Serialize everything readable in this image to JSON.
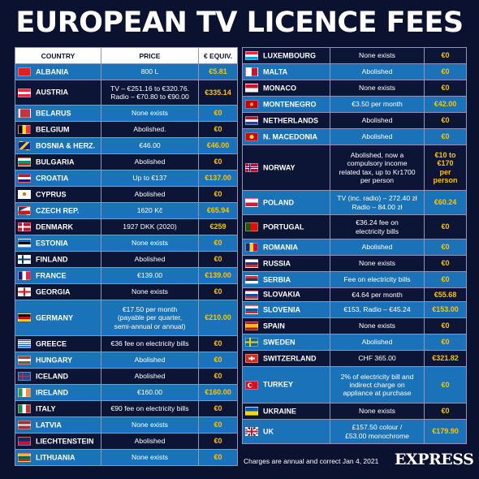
{
  "title": "EUROPEAN TV LICENCE FEES",
  "headers": {
    "country": "COUNTRY",
    "price": "PRICE",
    "equiv": "€ EQUIV."
  },
  "colors": {
    "light_row": "#1a73b8",
    "dark_row": "#0c1536",
    "highlight": "#f7c500",
    "background": "#0b1230"
  },
  "left_rows": [
    {
      "country": "ALBANIA",
      "price": "800 L",
      "equiv": "€5.81",
      "flag": "albania-flag"
    },
    {
      "country": "AUSTRIA",
      "price": "TV – €251.16 to €320.76.\nRadio – €70.80 to €90.00",
      "equiv": "€335.14",
      "flag": "austria-flag"
    },
    {
      "country": "BELARUS",
      "price": "None exists",
      "equiv": "€0",
      "flag": "belarus-flag"
    },
    {
      "country": "BELGIUM",
      "price": "Abolished.",
      "equiv": "€0",
      "flag": "belgium-flag"
    },
    {
      "country": "BOSNIA & HERZ.",
      "price": "€46.00",
      "equiv": "€46.00",
      "flag": "bosnia-flag"
    },
    {
      "country": "BULGARIA",
      "price": "Abolished",
      "equiv": "€0",
      "flag": "bulgaria-flag"
    },
    {
      "country": "CROATIA",
      "price": "Up to €137",
      "equiv": "€137.00",
      "flag": "croatia-flag"
    },
    {
      "country": "CYPRUS",
      "price": "Abolished",
      "equiv": "€0",
      "flag": "cyprus-flag"
    },
    {
      "country": "CZECH REP.",
      "price": "1620 Kč",
      "equiv": "€65.94",
      "flag": "czech-flag"
    },
    {
      "country": "DENMARK",
      "price": "1927 DKK (2020)",
      "equiv": "€259",
      "flag": "denmark-flag"
    },
    {
      "country": "ESTONIA",
      "price": "None exists",
      "equiv": "€0",
      "flag": "estonia-flag"
    },
    {
      "country": "FINLAND",
      "price": "Abolished",
      "equiv": "€0",
      "flag": "finland-flag"
    },
    {
      "country": "FRANCE",
      "price": "€139.00",
      "equiv": "€139.00",
      "flag": "france-flag"
    },
    {
      "country": "GEORGIA",
      "price": "None exists",
      "equiv": "€0",
      "flag": "georgia-flag"
    },
    {
      "country": "GERMANY",
      "price": "€17.50 per month\n(payable per quarter,\nsemi-annual or annual)",
      "equiv": "€210.00",
      "flag": "germany-flag"
    },
    {
      "country": "GREECE",
      "price": "€36 fee on electricity bills",
      "equiv": "€0",
      "flag": "greece-flag"
    },
    {
      "country": "HUNGARY",
      "price": "Abolished",
      "equiv": "€0",
      "flag": "hungary-flag"
    },
    {
      "country": "ICELAND",
      "price": "Abolished",
      "equiv": "€0",
      "flag": "iceland-flag"
    },
    {
      "country": "IRELAND",
      "price": "€160.00",
      "equiv": "€160.00",
      "flag": "ireland-flag"
    },
    {
      "country": "ITALY",
      "price": "€90 fee on electricity bills",
      "equiv": "€0",
      "flag": "italy-flag"
    },
    {
      "country": "LATVIA",
      "price": "None exists",
      "equiv": "€0",
      "flag": "latvia-flag"
    },
    {
      "country": "LIECHTENSTEIN",
      "price": "Abolished",
      "equiv": "€0",
      "flag": "liechtenstein-flag"
    },
    {
      "country": "LITHUANIA",
      "price": "None exists",
      "equiv": "€0",
      "flag": "lithuania-flag"
    }
  ],
  "right_rows": [
    {
      "country": "LUXEMBOURG",
      "price": "None exists",
      "equiv": "€0",
      "flag": "luxembourg-flag"
    },
    {
      "country": "MALTA",
      "price": "Abolished",
      "equiv": "€0",
      "flag": "malta-flag"
    },
    {
      "country": "MONACO",
      "price": "None exists",
      "equiv": "€0",
      "flag": "monaco-flag"
    },
    {
      "country": "MONTENEGRO",
      "price": "€3.50 per month",
      "equiv": "€42.00",
      "flag": "montenegro-flag"
    },
    {
      "country": "NETHERLANDS",
      "price": "Abolished",
      "equiv": "€0",
      "flag": "netherlands-flag"
    },
    {
      "country": "N. MACEDONIA",
      "price": "Abolished",
      "equiv": "€0",
      "flag": "macedonia-flag"
    },
    {
      "country": "NORWAY",
      "price": "Abolished, now a\ncompulsory income\nrelated tax, up to Kr1700\nper person",
      "equiv": "€10 to\n€170\nper\nperson",
      "flag": "norway-flag"
    },
    {
      "country": "POLAND",
      "price": "TV (inc. radio) – 272.40 zł\nRadio – 84.00 zł",
      "equiv": "€60.24",
      "flag": "poland-flag"
    },
    {
      "country": "PORTUGAL",
      "price": "€36.24 fee on\nelectricity bills",
      "equiv": "€0",
      "flag": "portugal-flag"
    },
    {
      "country": "ROMANIA",
      "price": "Abolished",
      "equiv": "€0",
      "flag": "romania-flag"
    },
    {
      "country": "RUSSIA",
      "price": "None exists",
      "equiv": "€0",
      "flag": "russia-flag"
    },
    {
      "country": "SERBIA",
      "price": "Fee on electricity bills",
      "equiv": "€0",
      "flag": "serbia-flag"
    },
    {
      "country": "SLOVAKIA",
      "price": "€4.64 per month",
      "equiv": "€55.68",
      "flag": "slovakia-flag"
    },
    {
      "country": "SLOVENIA",
      "price": "€153, Radio – €45.24",
      "equiv": "€153.00",
      "flag": "slovenia-flag"
    },
    {
      "country": "SPAIN",
      "price": "None exists",
      "equiv": "€0",
      "flag": "spain-flag"
    },
    {
      "country": "SWEDEN",
      "price": "Abolished",
      "equiv": "€0",
      "flag": "sweden-flag"
    },
    {
      "country": "SWITZERLAND",
      "price": "CHF 365.00",
      "equiv": "€321.82",
      "flag": "switzerland-flag"
    },
    {
      "country": "TURKEY",
      "price": "2% of electricity bill and\nindirect charge on\nappliance at purchase",
      "equiv": "€0",
      "flag": "turkey-flag"
    },
    {
      "country": "UKRAINE",
      "price": "None exists",
      "equiv": "€0",
      "flag": "ukraine-flag"
    },
    {
      "country": "UK",
      "price": "£157.50 colour /\n£53.00 monochrome",
      "equiv": "€179.90",
      "flag": "uk-flag"
    }
  ],
  "footnote": "Charges are annual and correct Jan 4, 2021",
  "brand": "EXPRESS"
}
